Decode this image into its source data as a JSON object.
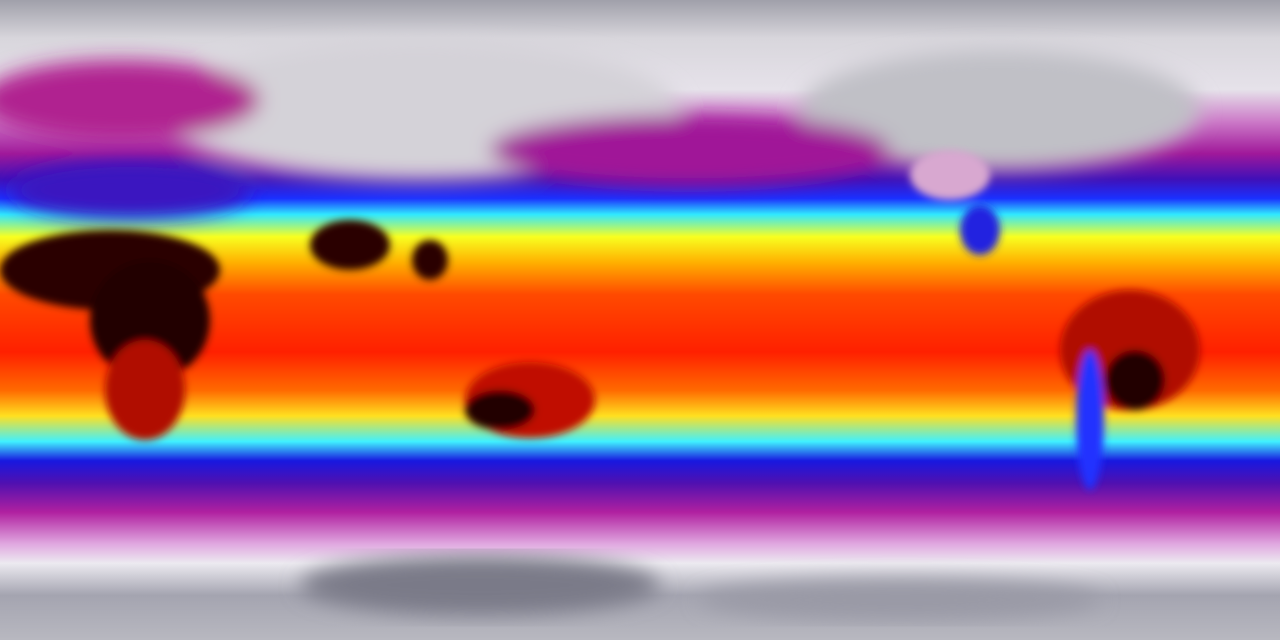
{
  "map": {
    "colorscale": [
      "#a9a9b3",
      "#e8e4ec",
      "#d9b8dc",
      "#b0208f",
      "#6a10a8",
      "#1a10d8",
      "#20e0ff",
      "#ffff20",
      "#ff9a00",
      "#ff2a00",
      "#c80000",
      "#200000"
    ],
    "land_dark": "#1a0505",
    "land_hot": "#d01000",
    "land_cold": "#c8c8cc"
  }
}
